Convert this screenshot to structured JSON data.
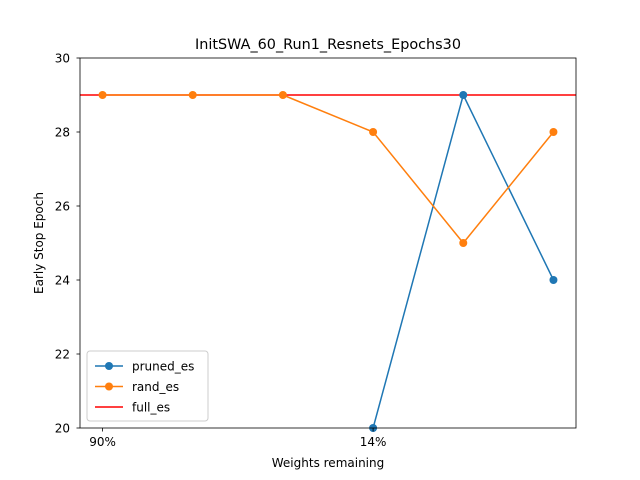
{
  "chart_data": {
    "type": "line",
    "title": "InitSWA_60_Run1_Resnets_Epochs30",
    "xlabel": "Weights remaining",
    "ylabel": "Early Stop Epoch",
    "x": [
      0,
      1,
      2,
      3,
      4,
      5
    ],
    "xticks": [
      {
        "x": 0,
        "label": "90%"
      },
      {
        "x": 3,
        "label": "14%"
      }
    ],
    "ylim": [
      20,
      30
    ],
    "yticks": [
      20,
      22,
      24,
      26,
      28,
      30
    ],
    "grid": false,
    "legend_position": "lower left",
    "series": [
      {
        "name": "pruned_es",
        "kind": "line-markers",
        "color": "#1f77b4",
        "values": [
          null,
          null,
          null,
          20,
          29,
          24
        ]
      },
      {
        "name": "rand_es",
        "kind": "line-markers",
        "color": "#ff7f0e",
        "values": [
          29,
          29,
          29,
          28,
          25,
          28
        ]
      },
      {
        "name": "full_es",
        "kind": "hline",
        "color": "#ff0000",
        "value": 29
      }
    ]
  }
}
